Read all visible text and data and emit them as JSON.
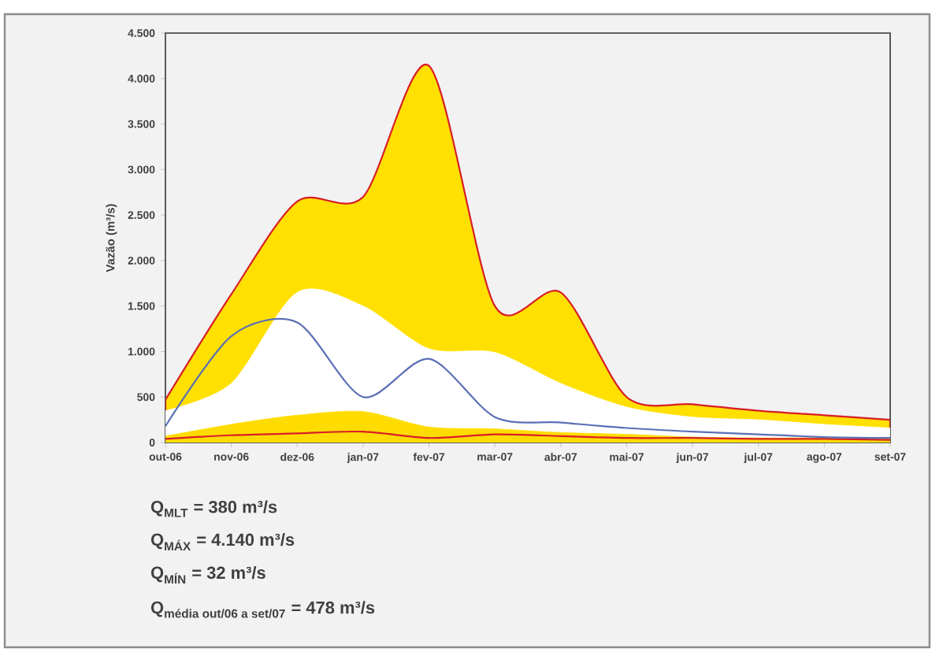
{
  "chart_data": {
    "type": "line",
    "ylabel": "Vazão (m³/s)",
    "categories": [
      "out-06",
      "nov-06",
      "dez-06",
      "jan-07",
      "fev-07",
      "mar-07",
      "abr-07",
      "mai-07",
      "jun-07",
      "jul-07",
      "ago-07",
      "set-07"
    ],
    "ylim": [
      0,
      4500
    ],
    "yticks": [
      0,
      500,
      {
        "value": 1000,
        "label": "1.000"
      },
      {
        "value": 1500,
        "label": "1.500"
      },
      {
        "value": 2000,
        "label": "2.000"
      },
      {
        "value": 2500,
        "label": "2.500"
      },
      {
        "value": 3000,
        "label": "3.000"
      },
      {
        "value": 3500,
        "label": "3.500"
      },
      {
        "value": 4000,
        "label": "4.000"
      },
      {
        "value": 4500,
        "label": "4.500"
      }
    ],
    "series": [
      {
        "color": "#d81e28",
        "values": [
          40,
          80,
          100,
          120,
          50,
          90,
          70,
          50,
          50,
          40,
          40,
          30
        ]
      },
      {
        "color": "#5b6fb5",
        "values": [
          180,
          1170,
          1320,
          500,
          920,
          280,
          220,
          160,
          120,
          90,
          60,
          50
        ]
      },
      {
        "type": "area",
        "color": "#ffe000",
        "values": [
          470,
          1630,
          2650,
          2700,
          4140,
          1500,
          1650,
          500,
          420,
          350,
          300,
          250
        ]
      },
      {
        "type": "area",
        "color": "#ffffff",
        "values": [
          350,
          650,
          1650,
          1500,
          1030,
          990,
          650,
          390,
          280,
          250,
          200,
          160
        ]
      },
      {
        "type": "area",
        "color": "#ffdc00",
        "values": [
          70,
          200,
          300,
          340,
          170,
          150,
          110,
          90,
          60,
          50,
          50,
          40
        ]
      }
    ],
    "annotations": [
      "\\text{\\bfseries Q}_{\\text{\\bfseries MLT}}\\text{\\bfseries\\ = 380 m³/s}",
      "\\text{\\bfseries Q}_{\\text{\\bfseries MÁX}}\\text{\\bfseries\\ = 4.140 m³/s}",
      "\\text{\\bfseries Q}_{\\text{\\bfseries MÍN}}\\text{\\bfseries\\ = 32 m³/s}",
      "\\text{\\bfseries Q}_{\\text{\\bfseries média out/06 a set/07}}\\text{\\bfseries\\ = 478 m³/s}"
    ]
  }
}
